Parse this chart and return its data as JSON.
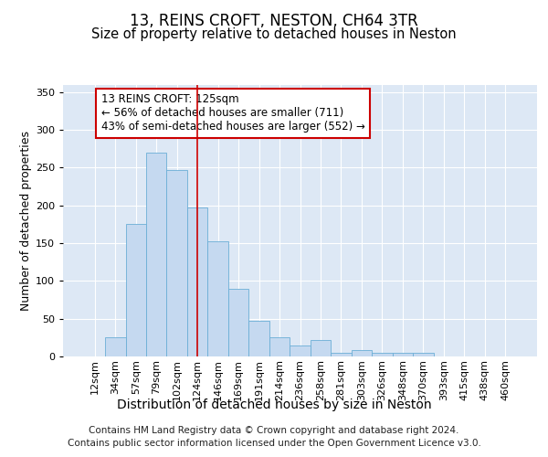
{
  "title1": "13, REINS CROFT, NESTON, CH64 3TR",
  "title2": "Size of property relative to detached houses in Neston",
  "xlabel": "Distribution of detached houses by size in Neston",
  "ylabel": "Number of detached properties",
  "categories": [
    "12sqm",
    "34sqm",
    "57sqm",
    "79sqm",
    "102sqm",
    "124sqm",
    "146sqm",
    "169sqm",
    "191sqm",
    "214sqm",
    "236sqm",
    "258sqm",
    "281sqm",
    "303sqm",
    "326sqm",
    "348sqm",
    "370sqm",
    "393sqm",
    "415sqm",
    "438sqm",
    "460sqm"
  ],
  "values": [
    0,
    25,
    175,
    270,
    247,
    197,
    153,
    90,
    47,
    26,
    15,
    22,
    5,
    8,
    5,
    5,
    5,
    0,
    0,
    0,
    0
  ],
  "bar_color": "#c5d9f0",
  "bar_edge_color": "#6baed6",
  "bg_color": "#dde8f5",
  "annotation_text": "13 REINS CROFT: 125sqm\n← 56% of detached houses are smaller (711)\n43% of semi-detached houses are larger (552) →",
  "annotation_box_color": "white",
  "annotation_border_color": "#cc0000",
  "vline_color": "#cc0000",
  "vline_x": 5.0,
  "ylim": [
    0,
    360
  ],
  "yticks": [
    0,
    50,
    100,
    150,
    200,
    250,
    300,
    350
  ],
  "footer": "Contains HM Land Registry data © Crown copyright and database right 2024.\nContains public sector information licensed under the Open Government Licence v3.0.",
  "title1_fontsize": 12,
  "title2_fontsize": 10.5,
  "xlabel_fontsize": 10,
  "ylabel_fontsize": 9,
  "tick_fontsize": 8,
  "annotation_fontsize": 8.5,
  "footer_fontsize": 7.5
}
